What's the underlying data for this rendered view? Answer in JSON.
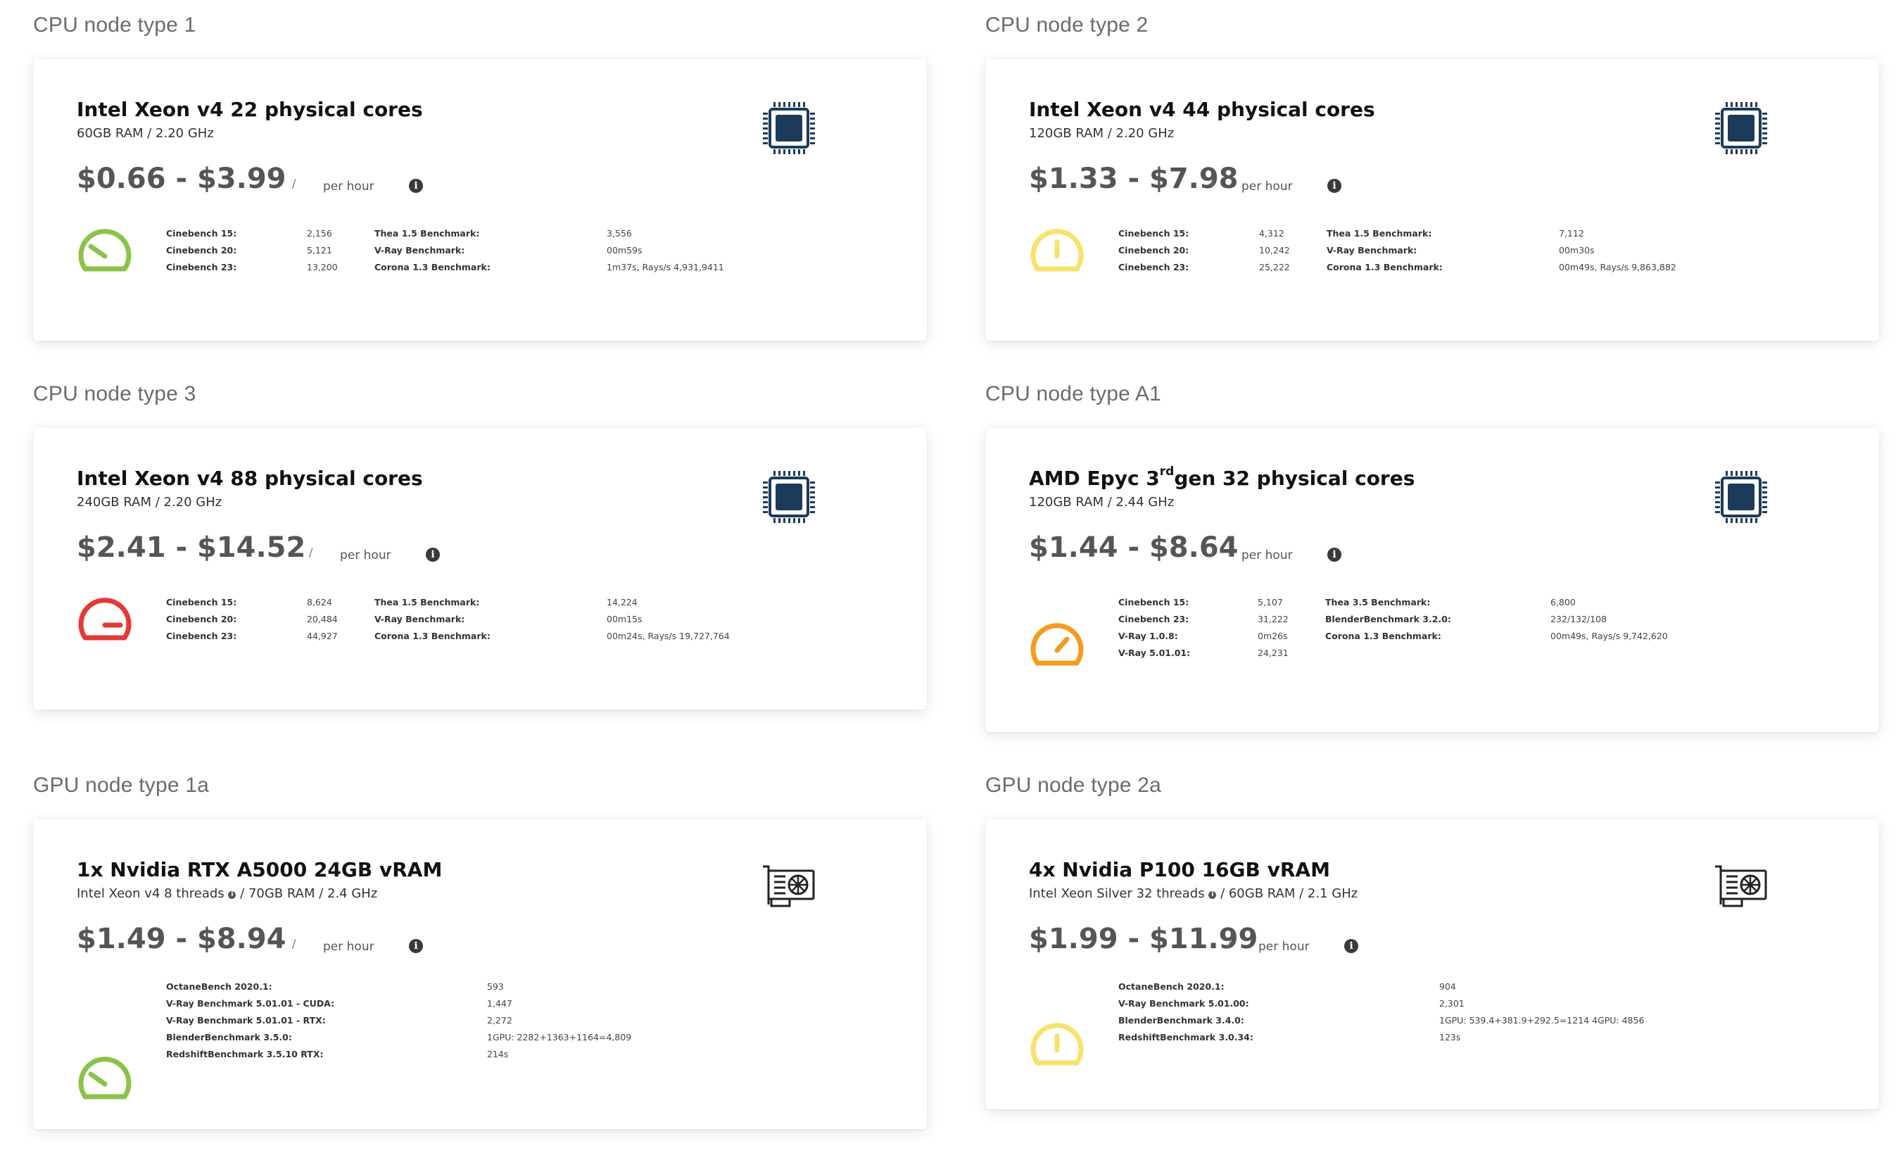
{
  "sections": [
    {
      "heading": "CPU node type 1",
      "title": "Intel Xeon v4 22 physical cores",
      "subtitle": "60GB RAM / 2.20 GHz",
      "price": "$0.66 - $3.99",
      "slash": "/",
      "per_hour": "per hour",
      "gauge_color": "#8bc34a",
      "gauge_level": "low",
      "icon": "cpu-chip-icon",
      "benchmarks_left": [
        {
          "name": "Cinebench 15:",
          "value": "2,156"
        },
        {
          "name": "Cinebench 20:",
          "value": "5,121"
        },
        {
          "name": "Cinebench 23:",
          "value": "13,200"
        }
      ],
      "benchmarks_right": [
        {
          "name": "Thea 1.5 Benchmark:",
          "value": "3,556"
        },
        {
          "name": "V-Ray Benchmark:",
          "value": "00m59s"
        },
        {
          "name": "Corona 1.3 Benchmark:",
          "value": "1m37s, Rays/s 4,931,9411"
        }
      ]
    },
    {
      "heading": "CPU node type 2",
      "title": "Intel Xeon v4 44 physical cores",
      "subtitle": "120GB RAM / 2.20 GHz",
      "price": "$1.33 - $7.98",
      "slash": "/",
      "per_hour": "per hour",
      "gauge_color": "#f7e26b",
      "gauge_level": "mid",
      "icon": "cpu-chip-icon",
      "benchmarks_left": [
        {
          "name": "Cinebench 15:",
          "value": "4,312"
        },
        {
          "name": "Cinebench 20:",
          "value": "10,242"
        },
        {
          "name": "Cinebench 23:",
          "value": "25,222"
        }
      ],
      "benchmarks_right": [
        {
          "name": "Thea 1.5 Benchmark:",
          "value": "7,112"
        },
        {
          "name": "V-Ray Benchmark:",
          "value": "00m30s"
        },
        {
          "name": "Corona 1.3 Benchmark:",
          "value": "00m49s, Rays/s 9,863,882"
        }
      ]
    },
    {
      "heading": "CPU node type 3",
      "title": "Intel Xeon v4 88 physical cores",
      "subtitle": "240GB RAM / 2.20 GHz",
      "price": "$2.41 - $14.52",
      "slash": "/",
      "per_hour": "per hour",
      "gauge_color": "#e53935",
      "gauge_level": "high",
      "icon": "cpu-chip-icon",
      "benchmarks_left": [
        {
          "name": "Cinebench 15:",
          "value": "8,624"
        },
        {
          "name": "Cinebench 20:",
          "value": "20,484"
        },
        {
          "name": "Cinebench 23:",
          "value": "44,927"
        }
      ],
      "benchmarks_right": [
        {
          "name": "Thea 1.5 Benchmark:",
          "value": "14,224"
        },
        {
          "name": "V-Ray Benchmark:",
          "value": "00m15s"
        },
        {
          "name": "Corona 1.3 Benchmark:",
          "value": "00m24s, Rays/s 19,727,764"
        }
      ]
    },
    {
      "heading": "CPU node type A1",
      "title_pre": "AMD Epyc 3",
      "title_sup": "rd",
      "title_post": "gen 32 physical cores",
      "subtitle": "120GB RAM / 2.44 GHz",
      "price": "$1.44 - $8.64",
      "slash": "/",
      "per_hour": "per hour",
      "gauge_color": "#f39c1f",
      "gauge_level": "mid-high",
      "icon": "cpu-chip-icon",
      "benchmarks_left": [
        {
          "name": "Cinebench 15:",
          "value": "5,107"
        },
        {
          "name": "Cinebench 23:",
          "value": "31,222"
        },
        {
          "name": "V-Ray 1.0.8:",
          "value": "0m26s"
        },
        {
          "name": "V-Ray 5.01.01:",
          "value": "24,231"
        }
      ],
      "benchmarks_right": [
        {
          "name": "Thea 3.5 Benchmark:",
          "value": "6,800"
        },
        {
          "name": "BlenderBenchmark 3.2.0:",
          "value": "232/132/108"
        },
        {
          "name": "Corona 1.3 Benchmark:",
          "value": "00m49s, Rays/s 9,742,620"
        }
      ]
    },
    {
      "heading": "GPU node type 1a",
      "title": "1x Nvidia RTX A5000 24GB vRAM",
      "subtitle_pre": "Intel Xeon v4 8 threads",
      "subtitle_post": "/ 70GB RAM / 2.4 GHz",
      "info_mini": "i",
      "price": "$1.49 - $8.94",
      "slash": "/",
      "per_hour": "per hour",
      "gauge_color": "#8bc34a",
      "gauge_level": "low",
      "icon": "gpu-card-icon",
      "benchmarks": [
        {
          "name": "OctaneBench 2020.1:",
          "value": "593"
        },
        {
          "name": "V-Ray Benchmark 5.01.01 - CUDA:",
          "value": "1,447"
        },
        {
          "name": "V-Ray Benchmark 5.01.01 - RTX:",
          "value": "2,272"
        },
        {
          "name": "BlenderBenchmark 3.5.0:",
          "value": "1GPU: 2282+1363+1164=4,809"
        },
        {
          "name": "RedshiftBenchmark 3.5.10 RTX:",
          "value": "214s"
        }
      ]
    },
    {
      "heading": "GPU node type 2a",
      "title": "4x Nvidia P100 16GB vRAM",
      "subtitle_pre": "Intel Xeon Silver 32 threads",
      "subtitle_post": "/ 60GB RAM / 2.1 GHz",
      "info_mini": "i",
      "price": "$1.99 - $11.99",
      "slash": "/",
      "per_hour": "per hour",
      "gauge_color": "#f7e26b",
      "gauge_level": "mid",
      "icon": "gpu-card-icon",
      "benchmarks": [
        {
          "name": "OctaneBench 2020.1:",
          "value": "904"
        },
        {
          "name": "V-Ray Benchmark 5.01.00:",
          "value": "2,301"
        },
        {
          "name": "BlenderBenchmark 3.4.0:",
          "value": "1GPU: 539.4+381.9+292.5=1214 4GPU: 4856"
        },
        {
          "name": "RedshiftBenchmark 3.0.34:",
          "value": "123s"
        }
      ]
    }
  ],
  "info_glyph": "i",
  "colors": {
    "chip": "#1c3b5a",
    "gpu": "#222222"
  }
}
